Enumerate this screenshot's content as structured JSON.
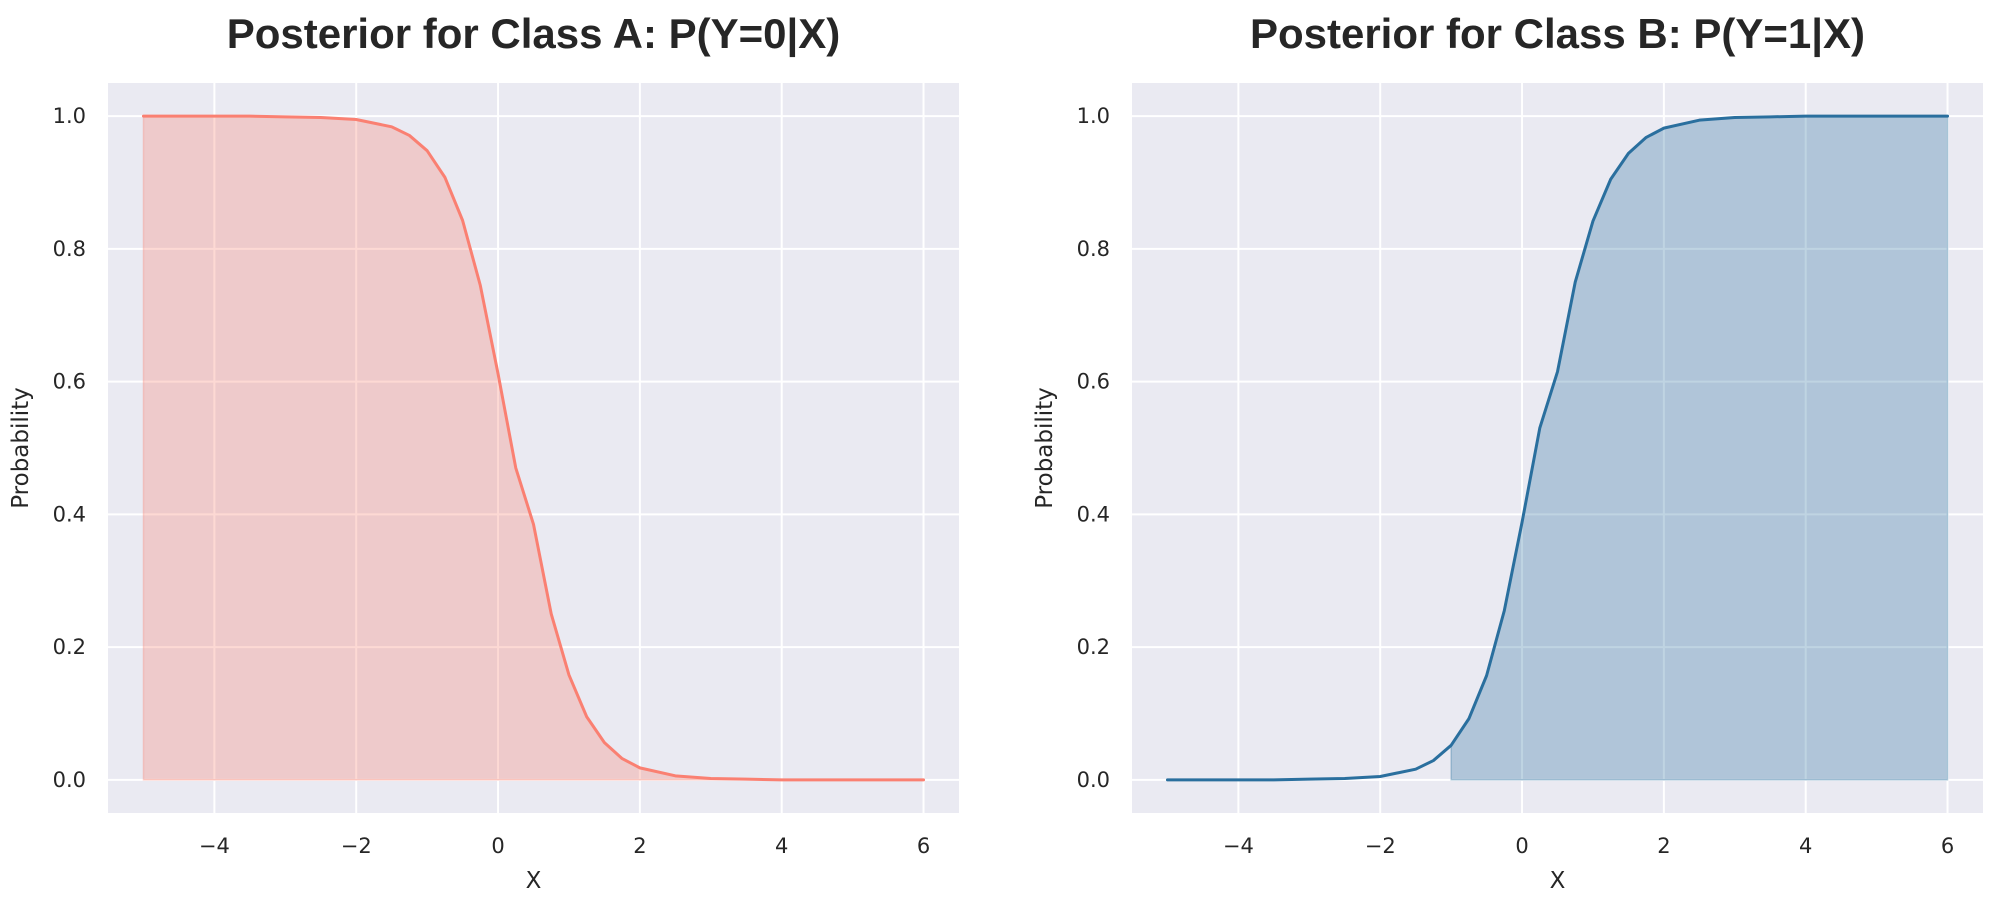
{
  "chart_data": [
    {
      "type": "area",
      "title": "Posterior for Class A: P(Y=0|X)",
      "xlabel": "X",
      "ylabel": "Probability",
      "xlim": [
        -5.5,
        6.5
      ],
      "ylim": [
        -0.05,
        1.05
      ],
      "xticks": [
        -4,
        -2,
        0,
        2,
        4,
        6
      ],
      "xtick_labels": [
        "−4",
        "−2",
        "0",
        "2",
        "4",
        "6"
      ],
      "yticks": [
        0.0,
        0.2,
        0.4,
        0.6,
        0.8,
        1.0
      ],
      "ytick_labels": [
        "0.0",
        "0.2",
        "0.4",
        "0.6",
        "0.8",
        "1.0"
      ],
      "fill_range": [
        -5,
        6
      ],
      "grid": true,
      "color": "#fa8072",
      "series": [
        {
          "x": [
            -5,
            -4.5,
            -4,
            -3.5,
            -3,
            -2.5,
            -2,
            -1.5,
            -1.25,
            -1,
            -0.75,
            -0.5,
            -0.25,
            0,
            0.25,
            0.5,
            0.75,
            1,
            1.25,
            1.5,
            1.75,
            2,
            2.5,
            3,
            3.5,
            4,
            4.5,
            5,
            5.5,
            6
          ],
          "y": [
            1.0,
            1.0,
            1.0,
            1.0,
            0.999,
            0.998,
            0.995,
            0.984,
            0.971,
            0.948,
            0.908,
            0.843,
            0.745,
            0.612,
            0.47,
            0.385,
            0.25,
            0.158,
            0.095,
            0.056,
            0.032,
            0.018,
            0.006,
            0.002,
            0.001,
            0.0,
            0.0,
            0.0,
            0.0,
            0.0
          ]
        }
      ]
    },
    {
      "type": "area",
      "title": "Posterior for Class B: P(Y=1|X)",
      "xlabel": "X",
      "ylabel": "Probability",
      "xlim": [
        -5.5,
        6.5
      ],
      "ylim": [
        -0.05,
        1.05
      ],
      "xticks": [
        -4,
        -2,
        0,
        2,
        4,
        6
      ],
      "xtick_labels": [
        "−4",
        "−2",
        "0",
        "2",
        "4",
        "6"
      ],
      "yticks": [
        0.0,
        0.2,
        0.4,
        0.6,
        0.8,
        1.0
      ],
      "ytick_labels": [
        "0.0",
        "0.2",
        "0.4",
        "0.6",
        "0.8",
        "1.0"
      ],
      "fill_range": [
        -1,
        6
      ],
      "grid": true,
      "color": "#2a6f9e",
      "series": [
        {
          "x": [
            -5,
            -4.5,
            -4,
            -3.5,
            -3,
            -2.5,
            -2,
            -1.5,
            -1.25,
            -1,
            -0.75,
            -0.5,
            -0.25,
            0,
            0.25,
            0.5,
            0.75,
            1,
            1.25,
            1.5,
            1.75,
            2,
            2.5,
            3,
            3.5,
            4,
            4.5,
            5,
            5.5,
            6
          ],
          "y": [
            0.0,
            0.0,
            0.0,
            0.0,
            0.001,
            0.002,
            0.005,
            0.016,
            0.029,
            0.052,
            0.092,
            0.157,
            0.255,
            0.388,
            0.53,
            0.615,
            0.75,
            0.842,
            0.905,
            0.944,
            0.968,
            0.982,
            0.994,
            0.998,
            0.999,
            1.0,
            1.0,
            1.0,
            1.0,
            1.0
          ]
        }
      ]
    }
  ]
}
